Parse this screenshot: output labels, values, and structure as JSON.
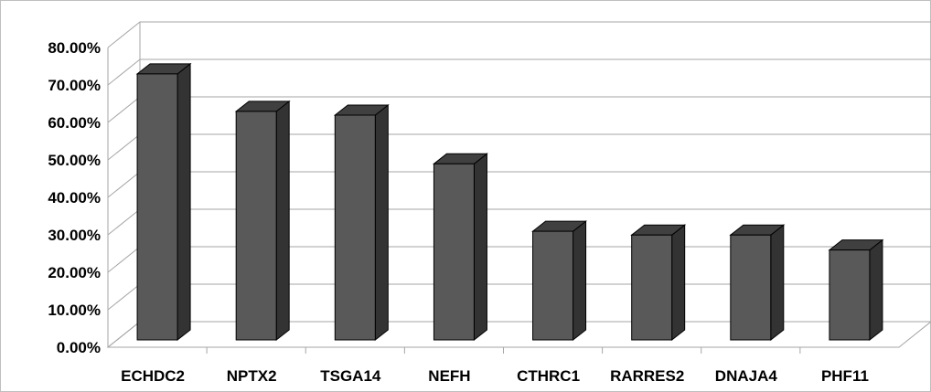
{
  "chart_data": {
    "type": "bar",
    "title": "",
    "xlabel": "",
    "ylabel": "",
    "categories": [
      "ECHDC2",
      "NPTX2",
      "TSGA14",
      "NEFH",
      "CTHRC1",
      "RARRES2",
      "DNAJA4",
      "PHF11"
    ],
    "values": [
      0.71,
      0.61,
      0.6,
      0.47,
      0.29,
      0.28,
      0.28,
      0.24
    ],
    "ylim": [
      0,
      0.8
    ],
    "yticks": [
      "0.00%",
      "10.00%",
      "20.00%",
      "30.00%",
      "40.00%",
      "50.00%",
      "60.00%",
      "70.00%",
      "80.00%"
    ],
    "grid": true,
    "style": "3d-column",
    "colors": {
      "front": "#595959",
      "side": "#333333",
      "top": "#404040",
      "grid": "#a6a6a6"
    }
  }
}
